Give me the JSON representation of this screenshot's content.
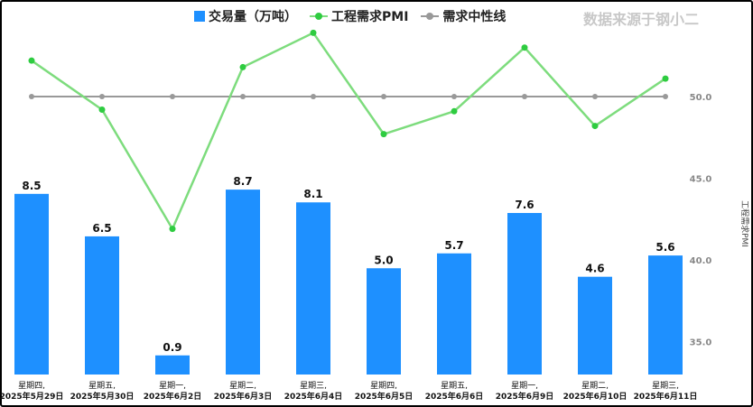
{
  "brand": "数据来源于钢小二",
  "colors": {
    "bar": "#1e90ff",
    "pmi": "#7ddc7d",
    "pmi_dot": "#2ecc40",
    "neutral": "#999999"
  },
  "chart_data": {
    "type": "bar+line",
    "categories": [
      [
        "星期四,",
        "2025年5月29日"
      ],
      [
        "星期五,",
        "2025年5月30日"
      ],
      [
        "星期一,",
        "2025年6月2日"
      ],
      [
        "星期二,",
        "2025年6月3日"
      ],
      [
        "星期三,",
        "2025年6月4日"
      ],
      [
        "星期四,",
        "2025年6月5日"
      ],
      [
        "星期五,",
        "2025年6月6日"
      ],
      [
        "星期一,",
        "2025年6月9日"
      ],
      [
        "星期二,",
        "2025年6月10日"
      ],
      [
        "星期三,",
        "2025年6月11日"
      ]
    ],
    "series": [
      {
        "name": "交易量（万吨）",
        "type": "bar",
        "axis": "left",
        "values": [
          8.5,
          6.5,
          0.9,
          8.7,
          8.1,
          5.0,
          5.7,
          7.6,
          4.6,
          5.6
        ],
        "labels": [
          "8.5",
          "6.5",
          "0.9",
          "8.7",
          "8.1",
          "5.0",
          "5.7",
          "7.6",
          "4.6",
          "5.6"
        ]
      },
      {
        "name": "工程需求PMI",
        "type": "line",
        "axis": "right",
        "values": [
          52.2,
          49.2,
          41.9,
          51.8,
          53.9,
          47.7,
          49.1,
          53.0,
          48.2,
          51.1
        ]
      },
      {
        "name": "需求中性线",
        "type": "line",
        "axis": "right",
        "values": [
          50,
          50,
          50,
          50,
          50,
          50,
          50,
          50,
          50,
          50
        ]
      }
    ],
    "right_axis": {
      "label": "工程需求PMI",
      "ticks": [
        "50.0",
        "45.0",
        "40.0",
        "35.0"
      ],
      "tick_values": [
        50,
        45,
        40,
        35
      ]
    },
    "left_axis": {
      "visible": false,
      "ylim": [
        0,
        17.2
      ]
    },
    "legend": "top"
  }
}
